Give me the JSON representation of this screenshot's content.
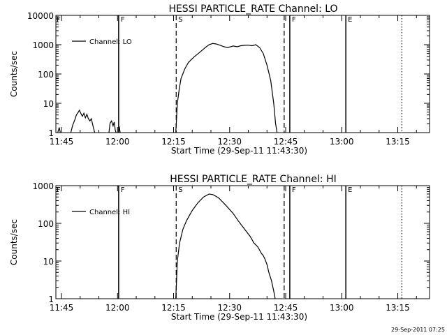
{
  "footer_timestamp": "29-Sep-2011 07:25",
  "colors": {
    "background": "#ffffff",
    "foreground": "#000000"
  },
  "chart_data": [
    {
      "type": "line",
      "title": "HESSI PARTICLE_RATE Channel: LO",
      "xlabel": "Start Time (29-Sep-11 11:43:30)",
      "ylabel": "Counts/sec",
      "yscale": "log",
      "ylim": [
        1,
        10000
      ],
      "xlim_minutes": [
        -1.5,
        98.5
      ],
      "x_ticks": [
        {
          "x": 0,
          "label": "11:45"
        },
        {
          "x": 15,
          "label": "12:00"
        },
        {
          "x": 30,
          "label": "12:15"
        },
        {
          "x": 45,
          "label": "12:30"
        },
        {
          "x": 60,
          "label": "12:45"
        },
        {
          "x": 75,
          "label": "13:00"
        },
        {
          "x": 90,
          "label": "13:15"
        }
      ],
      "y_ticks": [
        {
          "y": 1,
          "label": "1"
        },
        {
          "y": 10,
          "label": "10"
        },
        {
          "y": 100,
          "label": "100"
        },
        {
          "y": 1000,
          "label": "1000"
        },
        {
          "y": 10000,
          "label": "10000"
        }
      ],
      "legend": {
        "position": "top-left",
        "entries": [
          "Channel: LO"
        ]
      },
      "markers": [
        {
          "x": 15.3,
          "label": "F",
          "style": "solid"
        },
        {
          "x": 30.7,
          "label": "S",
          "style": "dashed"
        },
        {
          "x": 59.6,
          "label": "",
          "style": "dashed"
        },
        {
          "x": 61.1,
          "label": "F",
          "style": "solid"
        },
        {
          "x": 76.1,
          "label": "E",
          "style": "solid"
        },
        {
          "x": 91.1,
          "label": "",
          "style": "dotted"
        }
      ],
      "corner_marker": "F",
      "series": [
        {
          "name": "Channel: LO",
          "segments": [
            [
              [
                -1.0,
                1
              ],
              [
                -0.6,
                1.5
              ],
              [
                -0.3,
                1
              ]
            ],
            [
              [
                2.5,
                1
              ],
              [
                3.0,
                1.8
              ],
              [
                3.5,
                2.6
              ],
              [
                4.0,
                4.0
              ],
              [
                4.5,
                5.0
              ],
              [
                4.8,
                5.8
              ],
              [
                5.2,
                4.5
              ],
              [
                5.6,
                3.6
              ],
              [
                6.0,
                4.6
              ],
              [
                6.4,
                3.2
              ],
              [
                6.8,
                4.2
              ],
              [
                7.2,
                3.0
              ],
              [
                7.6,
                2.5
              ],
              [
                8.0,
                3.0
              ],
              [
                8.3,
                2.0
              ],
              [
                8.6,
                1.4
              ],
              [
                8.9,
                1
              ]
            ],
            [
              [
                12.7,
                1
              ],
              [
                13.0,
                2.1
              ],
              [
                13.4,
                2.5
              ],
              [
                13.8,
                1.7
              ],
              [
                14.1,
                2.3
              ],
              [
                14.4,
                1.2
              ],
              [
                14.6,
                1
              ]
            ],
            [
              [
                15.3,
                1
              ],
              [
                15.5,
                1.6
              ],
              [
                15.7,
                1
              ]
            ],
            [
              [
                30.6,
                1
              ],
              [
                31.0,
                10
              ],
              [
                31.5,
                30
              ],
              [
                32.0,
                70
              ],
              [
                33.0,
                150
              ],
              [
                34.0,
                250
              ],
              [
                35.5,
                380
              ],
              [
                37.0,
                550
              ],
              [
                38.5,
                800
              ],
              [
                39.5,
                1000
              ],
              [
                40.5,
                1100
              ],
              [
                41.5,
                1050
              ],
              [
                42.5,
                950
              ],
              [
                43.5,
                850
              ],
              [
                44.5,
                800
              ],
              [
                46.0,
                900
              ],
              [
                47.0,
                850
              ],
              [
                48.0,
                920
              ],
              [
                49.0,
                950
              ],
              [
                50.0,
                960
              ],
              [
                51.0,
                920
              ],
              [
                52.0,
                1000
              ],
              [
                53.0,
                800
              ],
              [
                54.0,
                500
              ],
              [
                55.0,
                200
              ],
              [
                56.0,
                60
              ],
              [
                56.8,
                10
              ],
              [
                57.3,
                2
              ],
              [
                57.7,
                1
              ]
            ]
          ]
        }
      ]
    },
    {
      "type": "line",
      "title": "HESSI PARTICLE_RATE Channel: HI",
      "xlabel": "Start Time (29-Sep-11 11:43:30)",
      "ylabel": "Counts/sec",
      "yscale": "log",
      "ylim": [
        1,
        1000
      ],
      "xlim_minutes": [
        -1.5,
        98.5
      ],
      "x_ticks": [
        {
          "x": 0,
          "label": "11:45"
        },
        {
          "x": 15,
          "label": "12:00"
        },
        {
          "x": 30,
          "label": "12:15"
        },
        {
          "x": 45,
          "label": "12:30"
        },
        {
          "x": 60,
          "label": "12:45"
        },
        {
          "x": 75,
          "label": "13:00"
        },
        {
          "x": 90,
          "label": "13:15"
        }
      ],
      "y_ticks": [
        {
          "y": 1,
          "label": "1"
        },
        {
          "y": 10,
          "label": "10"
        },
        {
          "y": 100,
          "label": "100"
        },
        {
          "y": 1000,
          "label": "1000"
        }
      ],
      "legend": {
        "position": "top-left",
        "entries": [
          "Channel: HI"
        ]
      },
      "markers": [
        {
          "x": 15.3,
          "label": "F",
          "style": "solid"
        },
        {
          "x": 30.7,
          "label": "S",
          "style": "dashed"
        },
        {
          "x": 59.6,
          "label": "",
          "style": "dashed"
        },
        {
          "x": 61.1,
          "label": "F",
          "style": "solid"
        },
        {
          "x": 76.1,
          "label": "E",
          "style": "solid"
        },
        {
          "x": 91.1,
          "label": "",
          "style": "dotted"
        }
      ],
      "corner_marker": "F",
      "series": [
        {
          "name": "Channel: HI",
          "segments": [
            [
              [
                30.6,
                1
              ],
              [
                31.0,
                10
              ],
              [
                31.6,
                30
              ],
              [
                32.5,
                70
              ],
              [
                33.5,
                120
              ],
              [
                35.0,
                220
              ],
              [
                36.5,
                350
              ],
              [
                38.0,
                500
              ],
              [
                39.5,
                600
              ],
              [
                40.5,
                580
              ],
              [
                42.0,
                480
              ],
              [
                44.0,
                300
              ],
              [
                46.0,
                180
              ],
              [
                47.5,
                110
              ],
              [
                49.0,
                70
              ],
              [
                50.5,
                45
              ],
              [
                51.5,
                30
              ],
              [
                52.5,
                24
              ],
              [
                53.5,
                16
              ],
              [
                54.0,
                14
              ],
              [
                54.5,
                11
              ],
              [
                55.0,
                8
              ],
              [
                55.5,
                5
              ],
              [
                56.2,
                3
              ],
              [
                56.8,
                1.6
              ],
              [
                57.2,
                1
              ]
            ]
          ]
        }
      ]
    }
  ]
}
